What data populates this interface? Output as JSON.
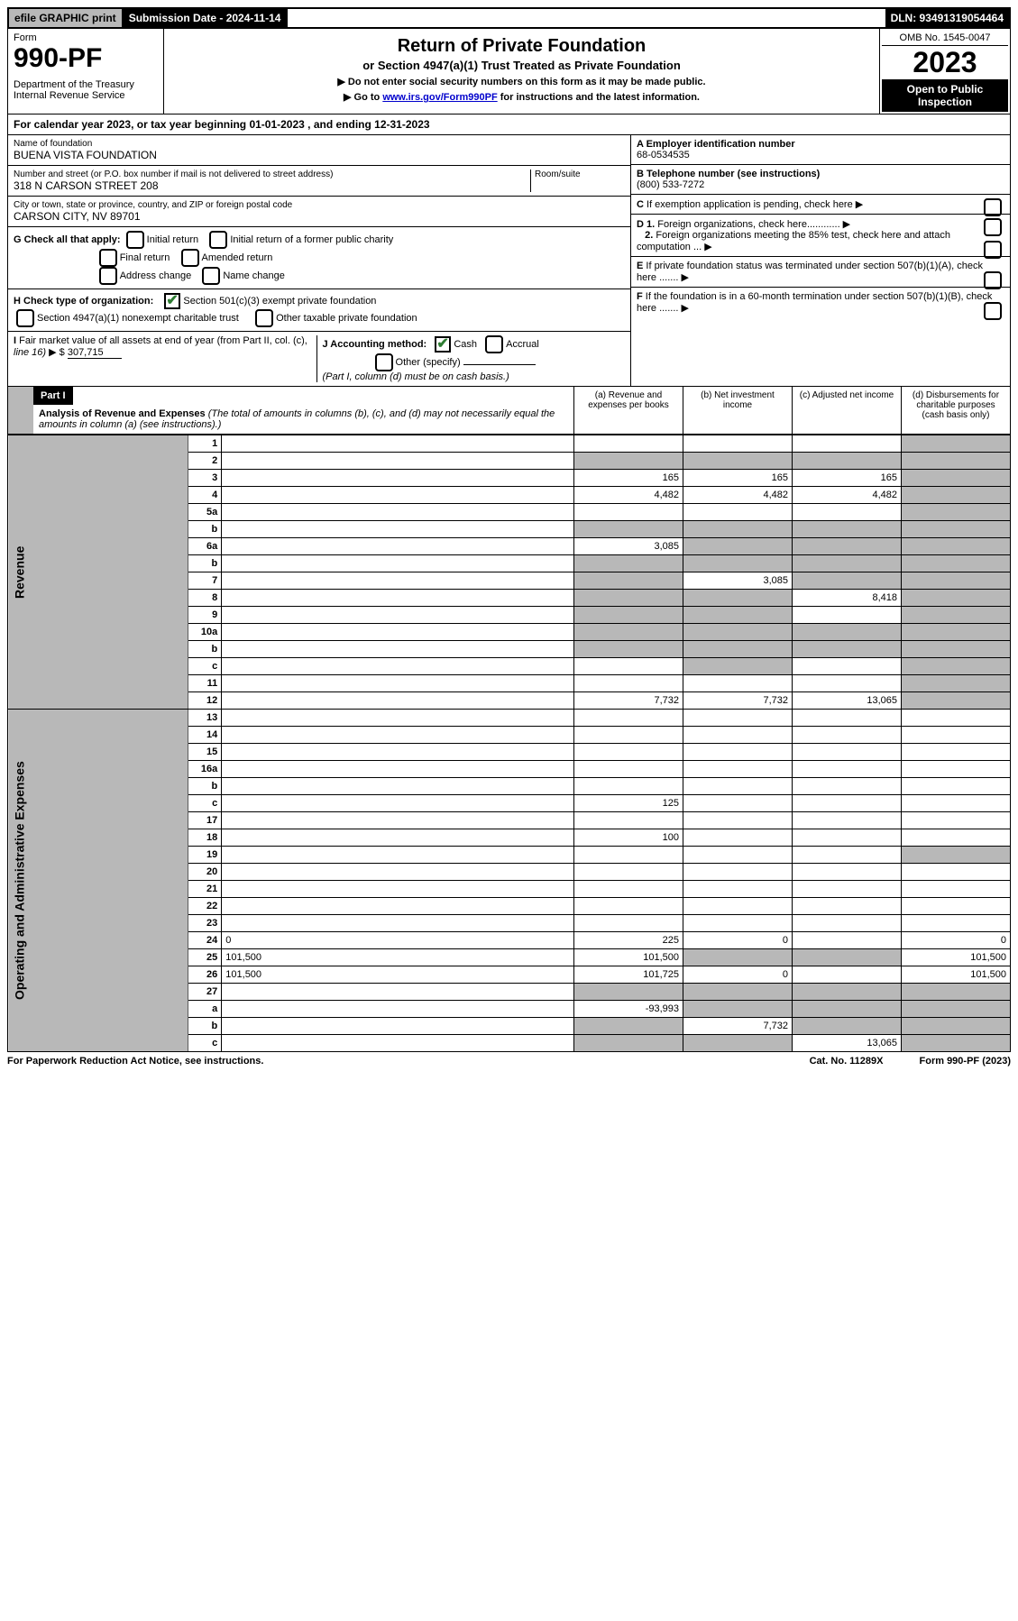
{
  "top": {
    "efile": "efile GRAPHIC print",
    "submission": "Submission Date - 2024-11-14",
    "dln": "DLN: 93491319054464"
  },
  "header": {
    "form_label": "Form",
    "form_number": "990-PF",
    "dept": "Department of the Treasury\nInternal Revenue Service",
    "title": "Return of Private Foundation",
    "subtitle": "or Section 4947(a)(1) Trust Treated as Private Foundation",
    "note1": "▶ Do not enter social security numbers on this form as it may be made public.",
    "note2_pre": "▶ Go to ",
    "note2_link": "www.irs.gov/Form990PF",
    "note2_post": " for instructions and the latest information.",
    "omb": "OMB No. 1545-0047",
    "year": "2023",
    "open": "Open to Public Inspection"
  },
  "calyear": "For calendar year 2023, or tax year beginning 01-01-2023          , and ending 12-31-2023",
  "foundation": {
    "name_lbl": "Name of foundation",
    "name": "BUENA VISTA FOUNDATION",
    "addr_lbl": "Number and street (or P.O. box number if mail is not delivered to street address)",
    "addr": "318 N CARSON STREET 208",
    "room_lbl": "Room/suite",
    "city_lbl": "City or town, state or province, country, and ZIP or foreign postal code",
    "city": "CARSON CITY, NV   89701",
    "ein_lbl": "A Employer identification number",
    "ein": "68-0534535",
    "tel_lbl": "B Telephone number (see instructions)",
    "tel": "(800) 533-7272",
    "c": "C If exemption application is pending, check here",
    "d1": "D 1. Foreign organizations, check here............",
    "d2": "2. Foreign organizations meeting the 85% test, check here and attach computation ...",
    "e": "E If private foundation status was terminated under section 507(b)(1)(A), check here .......",
    "f": "F If the foundation is in a 60-month termination under section 507(b)(1)(B), check here .......",
    "g_lbl": "G Check all that apply:",
    "g_opts": [
      "Initial return",
      "Initial return of a former public charity",
      "Final return",
      "Amended return",
      "Address change",
      "Name change"
    ],
    "h_lbl": "H Check type of organization:",
    "h1": "Section 501(c)(3) exempt private foundation",
    "h2": "Section 4947(a)(1) nonexempt charitable trust",
    "h3": "Other taxable private foundation",
    "i_lbl": "I Fair market value of all assets at end of year (from Part II, col. (c), line 16)",
    "i_val": "307,715",
    "j_lbl": "J Accounting method:",
    "j_cash": "Cash",
    "j_accrual": "Accrual",
    "j_other": "Other (specify)",
    "j_note": "(Part I, column (d) must be on cash basis.)"
  },
  "part1": {
    "label": "Part I",
    "title": "Analysis of Revenue and Expenses",
    "title_note": "(The total of amounts in columns (b), (c), and (d) may not necessarily equal the amounts in column (a) (see instructions).)",
    "col_a": "(a) Revenue and expenses per books",
    "col_b": "(b) Net investment income",
    "col_c": "(c) Adjusted net income",
    "col_d": "(d) Disbursements for charitable purposes (cash basis only)"
  },
  "side_labels": {
    "revenue": "Revenue",
    "expenses": "Operating and Administrative Expenses"
  },
  "rows": [
    {
      "n": "1",
      "d": "",
      "a": "",
      "b": "",
      "c": "",
      "shade_d": true
    },
    {
      "n": "2",
      "d": "",
      "a": "",
      "b": "",
      "c": "",
      "shade_a": true,
      "shade_b": true,
      "shade_c": true,
      "shade_d": true
    },
    {
      "n": "3",
      "d": "",
      "a": "165",
      "b": "165",
      "c": "165",
      "shade_d": true
    },
    {
      "n": "4",
      "d": "",
      "a": "4,482",
      "b": "4,482",
      "c": "4,482",
      "shade_d": true
    },
    {
      "n": "5a",
      "d": "",
      "a": "",
      "b": "",
      "c": "",
      "shade_d": true
    },
    {
      "n": "b",
      "d": "",
      "a": "",
      "b": "",
      "c": "",
      "shade_a": true,
      "shade_b": true,
      "shade_c": true,
      "shade_d": true
    },
    {
      "n": "6a",
      "d": "",
      "a": "3,085",
      "b": "",
      "c": "",
      "shade_b": true,
      "shade_c": true,
      "shade_d": true
    },
    {
      "n": "b",
      "d": "",
      "a": "",
      "b": "",
      "c": "",
      "shade_a": true,
      "shade_b": true,
      "shade_c": true,
      "shade_d": true
    },
    {
      "n": "7",
      "d": "",
      "a": "",
      "b": "3,085",
      "c": "",
      "shade_a": true,
      "shade_c": true,
      "shade_d": true
    },
    {
      "n": "8",
      "d": "",
      "a": "",
      "b": "",
      "c": "8,418",
      "shade_a": true,
      "shade_b": true,
      "shade_d": true
    },
    {
      "n": "9",
      "d": "",
      "a": "",
      "b": "",
      "c": "",
      "shade_a": true,
      "shade_b": true,
      "shade_d": true
    },
    {
      "n": "10a",
      "d": "",
      "a": "",
      "b": "",
      "c": "",
      "shade_a": true,
      "shade_b": true,
      "shade_c": true,
      "shade_d": true
    },
    {
      "n": "b",
      "d": "",
      "a": "",
      "b": "",
      "c": "",
      "shade_a": true,
      "shade_b": true,
      "shade_c": true,
      "shade_d": true
    },
    {
      "n": "c",
      "d": "",
      "a": "",
      "b": "",
      "c": "",
      "shade_b": true,
      "shade_d": true
    },
    {
      "n": "11",
      "d": "",
      "a": "",
      "b": "",
      "c": "",
      "shade_d": true
    },
    {
      "n": "12",
      "d": "",
      "a": "7,732",
      "b": "7,732",
      "c": "13,065",
      "shade_d": true
    },
    {
      "n": "13",
      "d": "",
      "a": "",
      "b": "",
      "c": ""
    },
    {
      "n": "14",
      "d": "",
      "a": "",
      "b": "",
      "c": ""
    },
    {
      "n": "15",
      "d": "",
      "a": "",
      "b": "",
      "c": ""
    },
    {
      "n": "16a",
      "d": "",
      "a": "",
      "b": "",
      "c": ""
    },
    {
      "n": "b",
      "d": "",
      "a": "",
      "b": "",
      "c": ""
    },
    {
      "n": "c",
      "d": "",
      "a": "125",
      "b": "",
      "c": ""
    },
    {
      "n": "17",
      "d": "",
      "a": "",
      "b": "",
      "c": ""
    },
    {
      "n": "18",
      "d": "",
      "a": "100",
      "b": "",
      "c": ""
    },
    {
      "n": "19",
      "d": "",
      "a": "",
      "b": "",
      "c": "",
      "shade_d": true
    },
    {
      "n": "20",
      "d": "",
      "a": "",
      "b": "",
      "c": ""
    },
    {
      "n": "21",
      "d": "",
      "a": "",
      "b": "",
      "c": ""
    },
    {
      "n": "22",
      "d": "",
      "a": "",
      "b": "",
      "c": ""
    },
    {
      "n": "23",
      "d": "",
      "a": "",
      "b": "",
      "c": ""
    },
    {
      "n": "24",
      "d": "0",
      "a": "225",
      "b": "0",
      "c": ""
    },
    {
      "n": "25",
      "d": "101,500",
      "a": "101,500",
      "b": "",
      "c": "",
      "shade_b": true,
      "shade_c": true
    },
    {
      "n": "26",
      "d": "101,500",
      "a": "101,725",
      "b": "0",
      "c": ""
    },
    {
      "n": "27",
      "d": "",
      "a": "",
      "b": "",
      "c": "",
      "shade_a": true,
      "shade_b": true,
      "shade_c": true,
      "shade_d": true
    },
    {
      "n": "a",
      "d": "",
      "a": "-93,993",
      "b": "",
      "c": "",
      "shade_b": true,
      "shade_c": true,
      "shade_d": true
    },
    {
      "n": "b",
      "d": "",
      "a": "",
      "b": "7,732",
      "c": "",
      "shade_a": true,
      "shade_c": true,
      "shade_d": true
    },
    {
      "n": "c",
      "d": "",
      "a": "",
      "b": "",
      "c": "13,065",
      "shade_a": true,
      "shade_b": true,
      "shade_d": true
    }
  ],
  "footer": {
    "left": "For Paperwork Reduction Act Notice, see instructions.",
    "mid": "Cat. No. 11289X",
    "right": "Form 990-PF (2023)"
  }
}
